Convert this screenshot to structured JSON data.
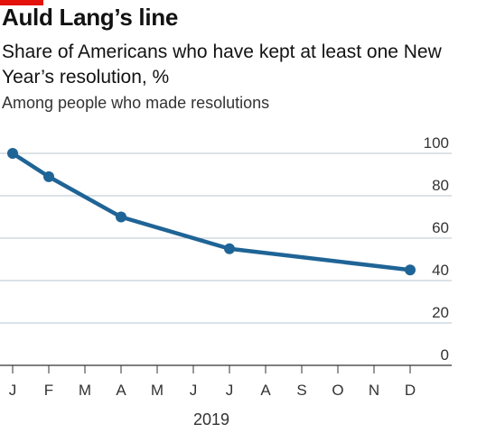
{
  "header": {
    "title": "Auld Lang’s line",
    "subtitle": "Share of Americans who have kept at least one New Year’s resolution, %",
    "note": "Among people who made resolutions"
  },
  "colors": {
    "accent": "#e3120b",
    "series": "#1f6496",
    "grid": "#b7c6d2",
    "axis": "#333333"
  },
  "chart_data": {
    "type": "line",
    "title": "Auld Lang’s line",
    "subtitle": "Share of Americans who have kept at least one New Year’s resolution, %",
    "note": "Among people who made resolutions",
    "x_ticks": [
      "J",
      "F",
      "M",
      "A",
      "M",
      "J",
      "J",
      "A",
      "S",
      "O",
      "N",
      "D"
    ],
    "x_label": "2019",
    "ylim": [
      0,
      100
    ],
    "y_ticks": [
      0,
      20,
      40,
      60,
      80,
      100
    ],
    "grid": true,
    "y_axis_side": "right",
    "series": [
      {
        "x": [
          "2019-01",
          "2019-02",
          "2019-04",
          "2019-07",
          "2019-12"
        ],
        "y": [
          100,
          89,
          70,
          55,
          45
        ],
        "marker": "circle"
      }
    ]
  }
}
